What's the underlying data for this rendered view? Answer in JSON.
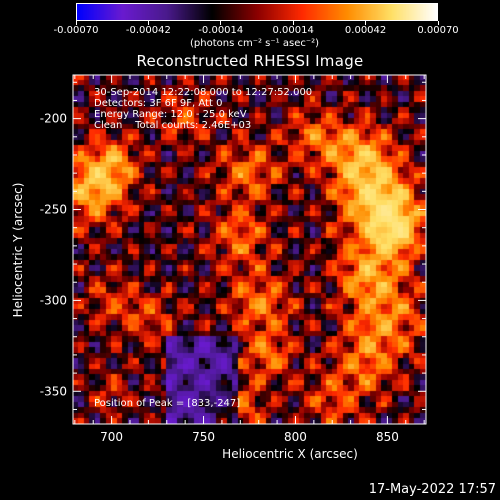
{
  "colorbar": {
    "tick_labels": [
      "-0.00070",
      "-0.00042",
      "-0.00014",
      "0.00014",
      "0.00042",
      "0.00070"
    ],
    "unit_label": "(photons cm⁻² s⁻¹ asec⁻²)"
  },
  "annotations": {
    "line1": "30-Sep-2014 12:22:08.000 to 12:27:52.000",
    "line2": "Detectors: 3F 6F 9F, Att 0",
    "line3": "Energy Range: 12.0 - 25.0 keV",
    "line4": "Clean    Total counts: 2.46E+03",
    "peak": "Position of Peak = [833,-247]"
  },
  "footer": {
    "datestamp": "17-May-2022 17:57"
  },
  "chart_data": {
    "type": "heatmap",
    "title": "Reconstructed RHESSI Image",
    "xlabel": "Heliocentric X (arcsec)",
    "ylabel": "Heliocentric Y (arcsec)",
    "xlim": [
      679,
      871
    ],
    "ylim": [
      -368,
      -176
    ],
    "x_ticks": [
      700,
      750,
      800,
      850
    ],
    "y_ticks": [
      -200,
      -250,
      -300,
      -350
    ],
    "colorbar_range": [
      -0.0007,
      0.0007
    ],
    "peak_position": [
      833,
      -247
    ],
    "colormap": [
      "#0000ff",
      "#6a1bd0",
      "#4a1a8c",
      "#000000",
      "#8b0000",
      "#ff2a00",
      "#ff8c00",
      "#ffe066",
      "#ffffff"
    ]
  }
}
